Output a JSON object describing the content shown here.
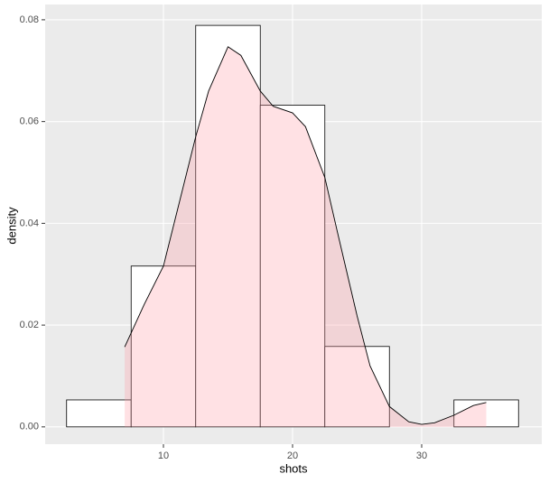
{
  "chart_data": {
    "type": "histogram",
    "xlabel": "shots",
    "ylabel": "density",
    "bins": [
      2.5,
      7.5,
      12.5,
      17.5,
      22.5,
      27.5,
      32.5,
      37.5
    ],
    "counts": [
      0.0053,
      0.0316,
      0.0789,
      0.0632,
      0.0158,
      0,
      0.0053
    ],
    "bar_fill": "#ffffff",
    "bar_stroke": "#000000",
    "density": {
      "x": [
        7,
        8.5,
        10,
        12.5,
        13.5,
        15,
        16,
        17.5,
        18.5,
        20,
        21,
        22.5,
        23.5,
        25,
        26,
        27.5,
        29,
        30,
        31,
        32.5,
        34,
        35
      ],
      "values": [
        0.0157,
        0.024,
        0.0316,
        0.057,
        0.066,
        0.0747,
        0.073,
        0.066,
        0.063,
        0.0617,
        0.059,
        0.049,
        0.038,
        0.0218,
        0.012,
        0.004,
        0.001,
        0.0005,
        0.0008,
        0.0023,
        0.0042,
        0.0048
      ],
      "color": "#ff9aa5",
      "line_color": "#000000"
    },
    "xlim": [
      0.84,
      39.3
    ],
    "ylim": [
      -0.0034,
      0.083
    ],
    "xticks": [
      10,
      20,
      30
    ],
    "yticks": [
      {
        "value": 0,
        "label": "0.00"
      },
      0.02,
      0.04,
      0.06,
      0.08
    ],
    "grid": true,
    "panel_color": "#ebebeb"
  }
}
